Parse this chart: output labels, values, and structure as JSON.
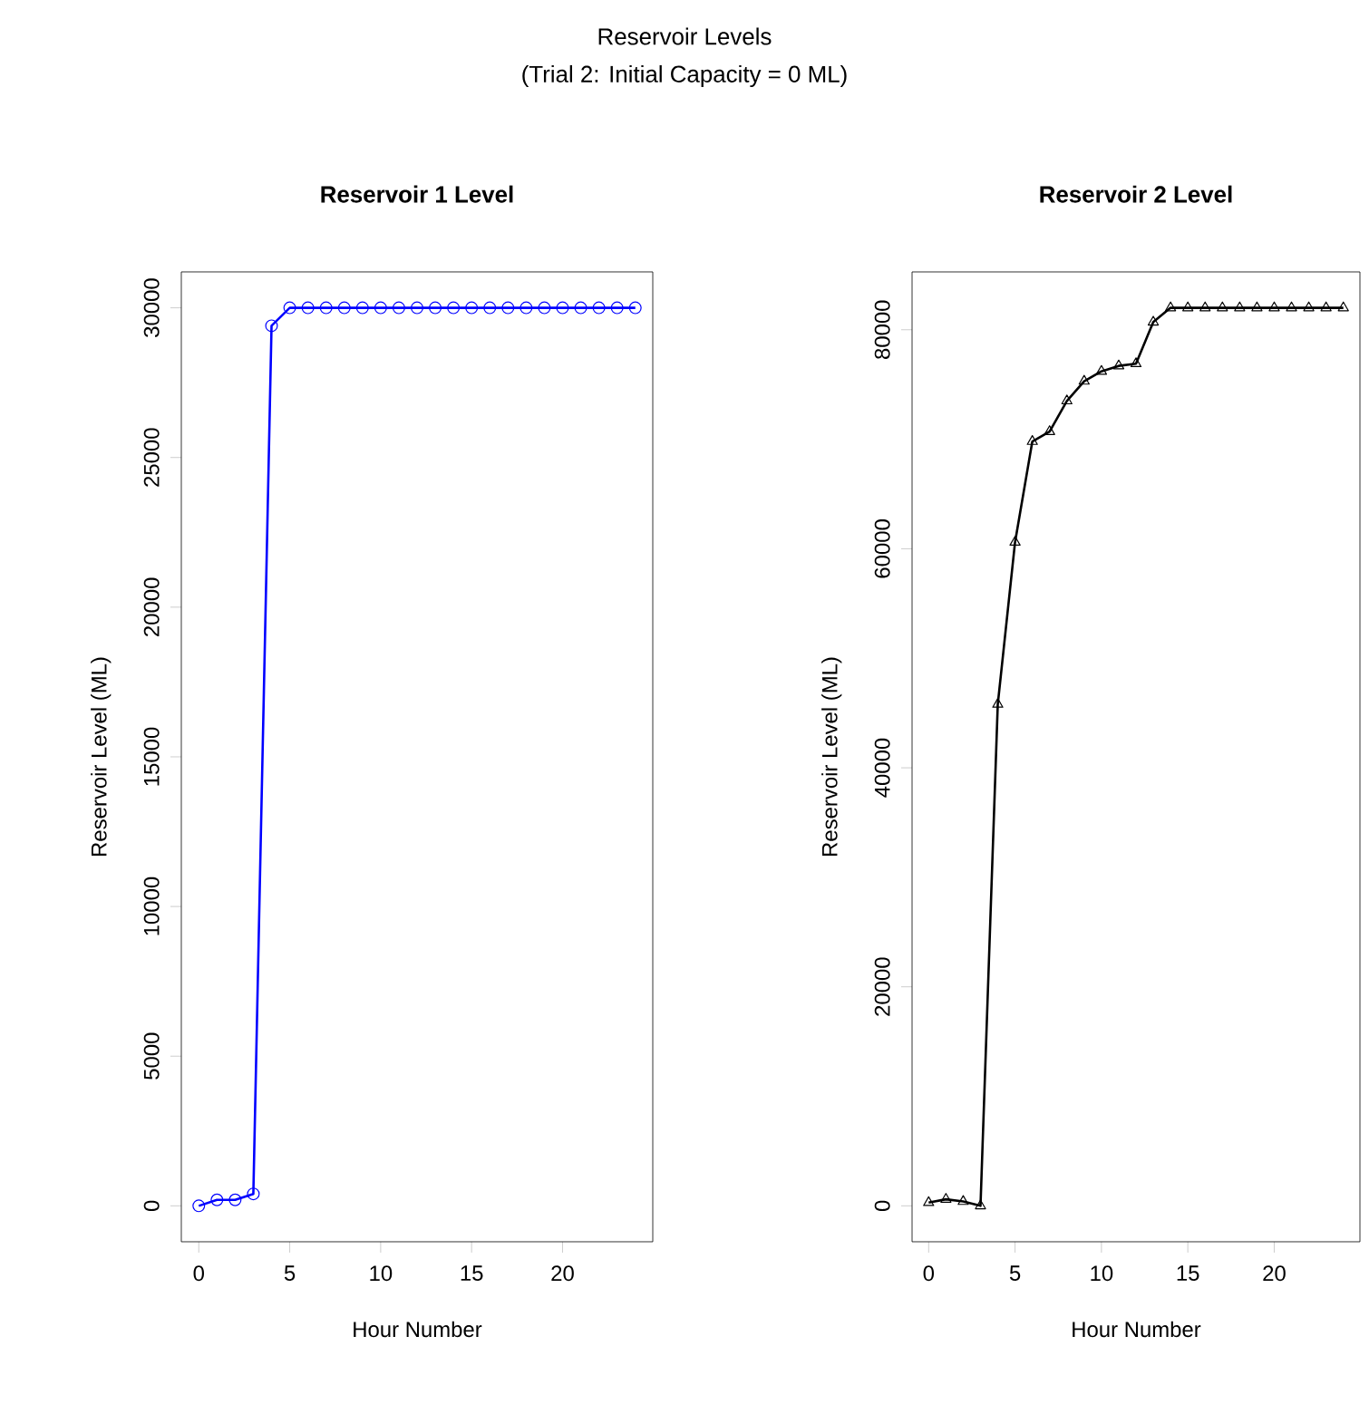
{
  "chart_data": [
    {
      "type": "line",
      "title": "Reservoir 1 Level",
      "xlabel": "Hour Number",
      "ylabel": "Reservoir Level (ML)",
      "annotations": [
        "Reservoir Levels",
        "(Trial 2: Initial Capacity = 0 ML)"
      ],
      "color": "#0000ff",
      "marker": "circle",
      "line_style": "solid",
      "x": [
        0,
        1,
        2,
        3,
        4,
        5,
        6,
        7,
        8,
        9,
        10,
        11,
        12,
        13,
        14,
        15,
        16,
        17,
        18,
        19,
        20,
        21,
        22,
        23,
        24
      ],
      "values": [
        0,
        200,
        200,
        400,
        29400,
        30000,
        30000,
        30000,
        30000,
        30000,
        30000,
        30000,
        30000,
        30000,
        30000,
        30000,
        30000,
        30000,
        30000,
        30000,
        30000,
        30000,
        30000,
        30000,
        30000
      ],
      "xlim": [
        -0.96,
        24.96
      ],
      "ylim": [
        -1200,
        31200
      ],
      "xticks": [
        0,
        5,
        10,
        15,
        20
      ],
      "yticks": [
        0,
        5000,
        10000,
        15000,
        20000,
        25000,
        30000
      ]
    },
    {
      "type": "line",
      "title": "Reservoir 2 Level",
      "xlabel": "Hour Number",
      "ylabel": "Reservoir Level (ML)",
      "color": "#000000",
      "marker": "triangle",
      "line_style": "solid",
      "x": [
        0,
        1,
        2,
        3,
        4,
        5,
        6,
        7,
        8,
        9,
        10,
        11,
        12,
        13,
        14,
        15,
        16,
        17,
        18,
        19,
        20,
        21,
        22,
        23,
        24
      ],
      "values": [
        300,
        600,
        400,
        0,
        45800,
        60600,
        69800,
        70700,
        73500,
        75300,
        76200,
        76700,
        76900,
        80700,
        82000,
        82000,
        82000,
        82000,
        82000,
        82000,
        82000,
        82000,
        82000,
        82000,
        82000
      ],
      "xlim": [
        -0.96,
        24.96
      ],
      "ylim": [
        -3280,
        85280
      ],
      "xticks": [
        0,
        5,
        10,
        15,
        20
      ],
      "yticks": [
        0,
        20000,
        40000,
        60000,
        80000
      ]
    }
  ]
}
